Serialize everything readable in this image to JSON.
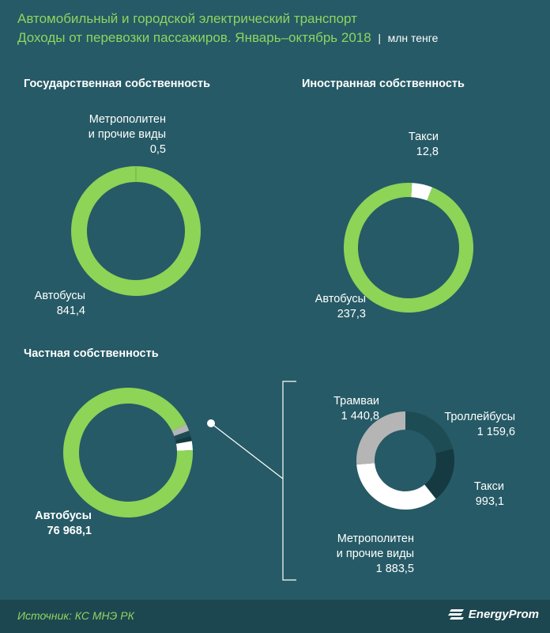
{
  "header": {
    "title_line1": "Автомобильный и городской электрический транспорт",
    "title_line2": "Доходы от перевозки пассажиров. Январь–октябрь 2018",
    "unit": "млн тенге"
  },
  "colors": {
    "background": "#265a66",
    "accent_green": "#8fd460",
    "ring_green": "#8dd457",
    "white": "#ffffff",
    "gray": "#b5b5b5",
    "dark_teal": "#1e4c55",
    "darker_teal": "#163a41"
  },
  "chart_data": [
    {
      "type": "pie",
      "title": "Государственная собственность",
      "slices": [
        {
          "name": "Автобусы",
          "value": 841.4,
          "label": "841,4",
          "color": "#8dd457"
        },
        {
          "name": "Метрополитен и прочие виды",
          "value": 0.5,
          "label": "0,5",
          "color": "#8dd457"
        }
      ]
    },
    {
      "type": "pie",
      "title": "Иностранная собственность",
      "slices": [
        {
          "name": "Автобусы",
          "value": 237.3,
          "label": "237,3",
          "color": "#8dd457"
        },
        {
          "name": "Такси",
          "value": 12.8,
          "label": "12,8",
          "color": "#ffffff"
        }
      ]
    },
    {
      "type": "pie",
      "title": "Частная собственность",
      "slices": [
        {
          "name": "Автобусы",
          "value": 76968.1,
          "label": "76 968,1",
          "color": "#8dd457"
        },
        {
          "name": "Трамваи",
          "value": 1440.8,
          "label": "1 440,8",
          "color": "#b5b5b5"
        },
        {
          "name": "Троллейбусы",
          "value": 1159.6,
          "label": "1 159,6",
          "color": "#1e4c55"
        },
        {
          "name": "Такси",
          "value": 993.1,
          "label": "993,1",
          "color": "#163a41"
        },
        {
          "name": "Метрополитен и прочие виды",
          "value": 1883.5,
          "label": "1 883,5",
          "color": "#ffffff"
        }
      ]
    },
    {
      "type": "pie",
      "title": "",
      "slices": [
        {
          "name": "Трамваи",
          "value": 1440.8,
          "label": "1 440,8",
          "color": "#b5b5b5"
        },
        {
          "name": "Троллейбусы",
          "value": 1159.6,
          "label": "1 159,6",
          "color": "#1e4c55"
        },
        {
          "name": "Такси",
          "value": 993.1,
          "label": "993,1",
          "color": "#163a41"
        },
        {
          "name": "Метрополитен и прочие виды",
          "value": 1883.5,
          "label": "1 883,5",
          "color": "#ffffff"
        }
      ]
    }
  ],
  "labels": {
    "state_metro_line1": "Метрополитен",
    "state_metro_line2": "и прочие виды",
    "state_metro_value": "0,5",
    "state_bus": "Автобусы",
    "state_bus_value": "841,4",
    "foreign_taxi": "Такси",
    "foreign_taxi_value": "12,8",
    "foreign_bus": "Автобусы",
    "foreign_bus_value": "237,3",
    "private_bus": "Автобусы",
    "private_bus_value": "76 968,1",
    "detail_tram": "Трамваи",
    "detail_tram_value": "1 440,8",
    "detail_trolley": "Троллейбусы",
    "detail_trolley_value": "1 159,6",
    "detail_taxi": "Такси",
    "detail_taxi_value": "993,1",
    "detail_metro_line1": "Метрополитен",
    "detail_metro_line2": "и прочие виды",
    "detail_metro_value": "1 883,5"
  },
  "footer": {
    "source": "Источник: КС МНЭ РК",
    "brand": "EnergyProm",
    "brand_icon": "energyprom-logo-icon"
  }
}
